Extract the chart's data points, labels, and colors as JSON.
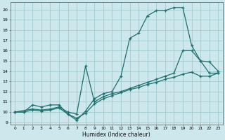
{
  "xlabel": "Humidex (Indice chaleur)",
  "bg_color": "#cce8ec",
  "grid_color": "#9fc9cf",
  "line_color": "#1e6e6e",
  "xlim": [
    -0.5,
    23.5
  ],
  "ylim": [
    8.8,
    20.7
  ],
  "xticks": [
    0,
    1,
    2,
    3,
    4,
    5,
    6,
    7,
    8,
    9,
    10,
    11,
    12,
    13,
    14,
    15,
    16,
    17,
    18,
    19,
    20,
    21,
    22,
    23
  ],
  "yticks": [
    9,
    10,
    11,
    12,
    13,
    14,
    15,
    16,
    17,
    18,
    19,
    20
  ],
  "series1_x": [
    0,
    1,
    2,
    3,
    4,
    5,
    6,
    7,
    8,
    9,
    10,
    11,
    12,
    13,
    14,
    15,
    16,
    17,
    18,
    19,
    20,
    21,
    22,
    23
  ],
  "series1_y": [
    10.0,
    10.0,
    10.7,
    10.5,
    10.7,
    10.7,
    9.8,
    9.2,
    10.1,
    11.3,
    11.8,
    12.0,
    13.5,
    17.2,
    17.7,
    19.4,
    19.9,
    19.9,
    20.2,
    20.2,
    16.5,
    15.0,
    14.9,
    14.0
  ],
  "series2_x": [
    0,
    2,
    3,
    4,
    5,
    6,
    7,
    8,
    9,
    10,
    11,
    12,
    13,
    14,
    15,
    16,
    17,
    18,
    19,
    20,
    21,
    22,
    23
  ],
  "series2_y": [
    10.0,
    10.3,
    10.2,
    10.3,
    10.5,
    10.0,
    9.8,
    14.5,
    11.0,
    11.5,
    11.8,
    12.0,
    12.3,
    12.6,
    12.9,
    13.2,
    13.5,
    13.8,
    16.0,
    16.0,
    15.0,
    13.8,
    13.8
  ],
  "series3_x": [
    0,
    1,
    2,
    3,
    4,
    5,
    6,
    7,
    8,
    9,
    10,
    11,
    12,
    13,
    14,
    15,
    16,
    17,
    18,
    19,
    20,
    21,
    22,
    23
  ],
  "series3_y": [
    10.0,
    10.0,
    10.2,
    10.1,
    10.2,
    10.4,
    9.8,
    9.4,
    9.9,
    10.8,
    11.3,
    11.6,
    11.9,
    12.2,
    12.4,
    12.7,
    12.9,
    13.2,
    13.4,
    13.7,
    13.9,
    13.5,
    13.5,
    13.8
  ]
}
